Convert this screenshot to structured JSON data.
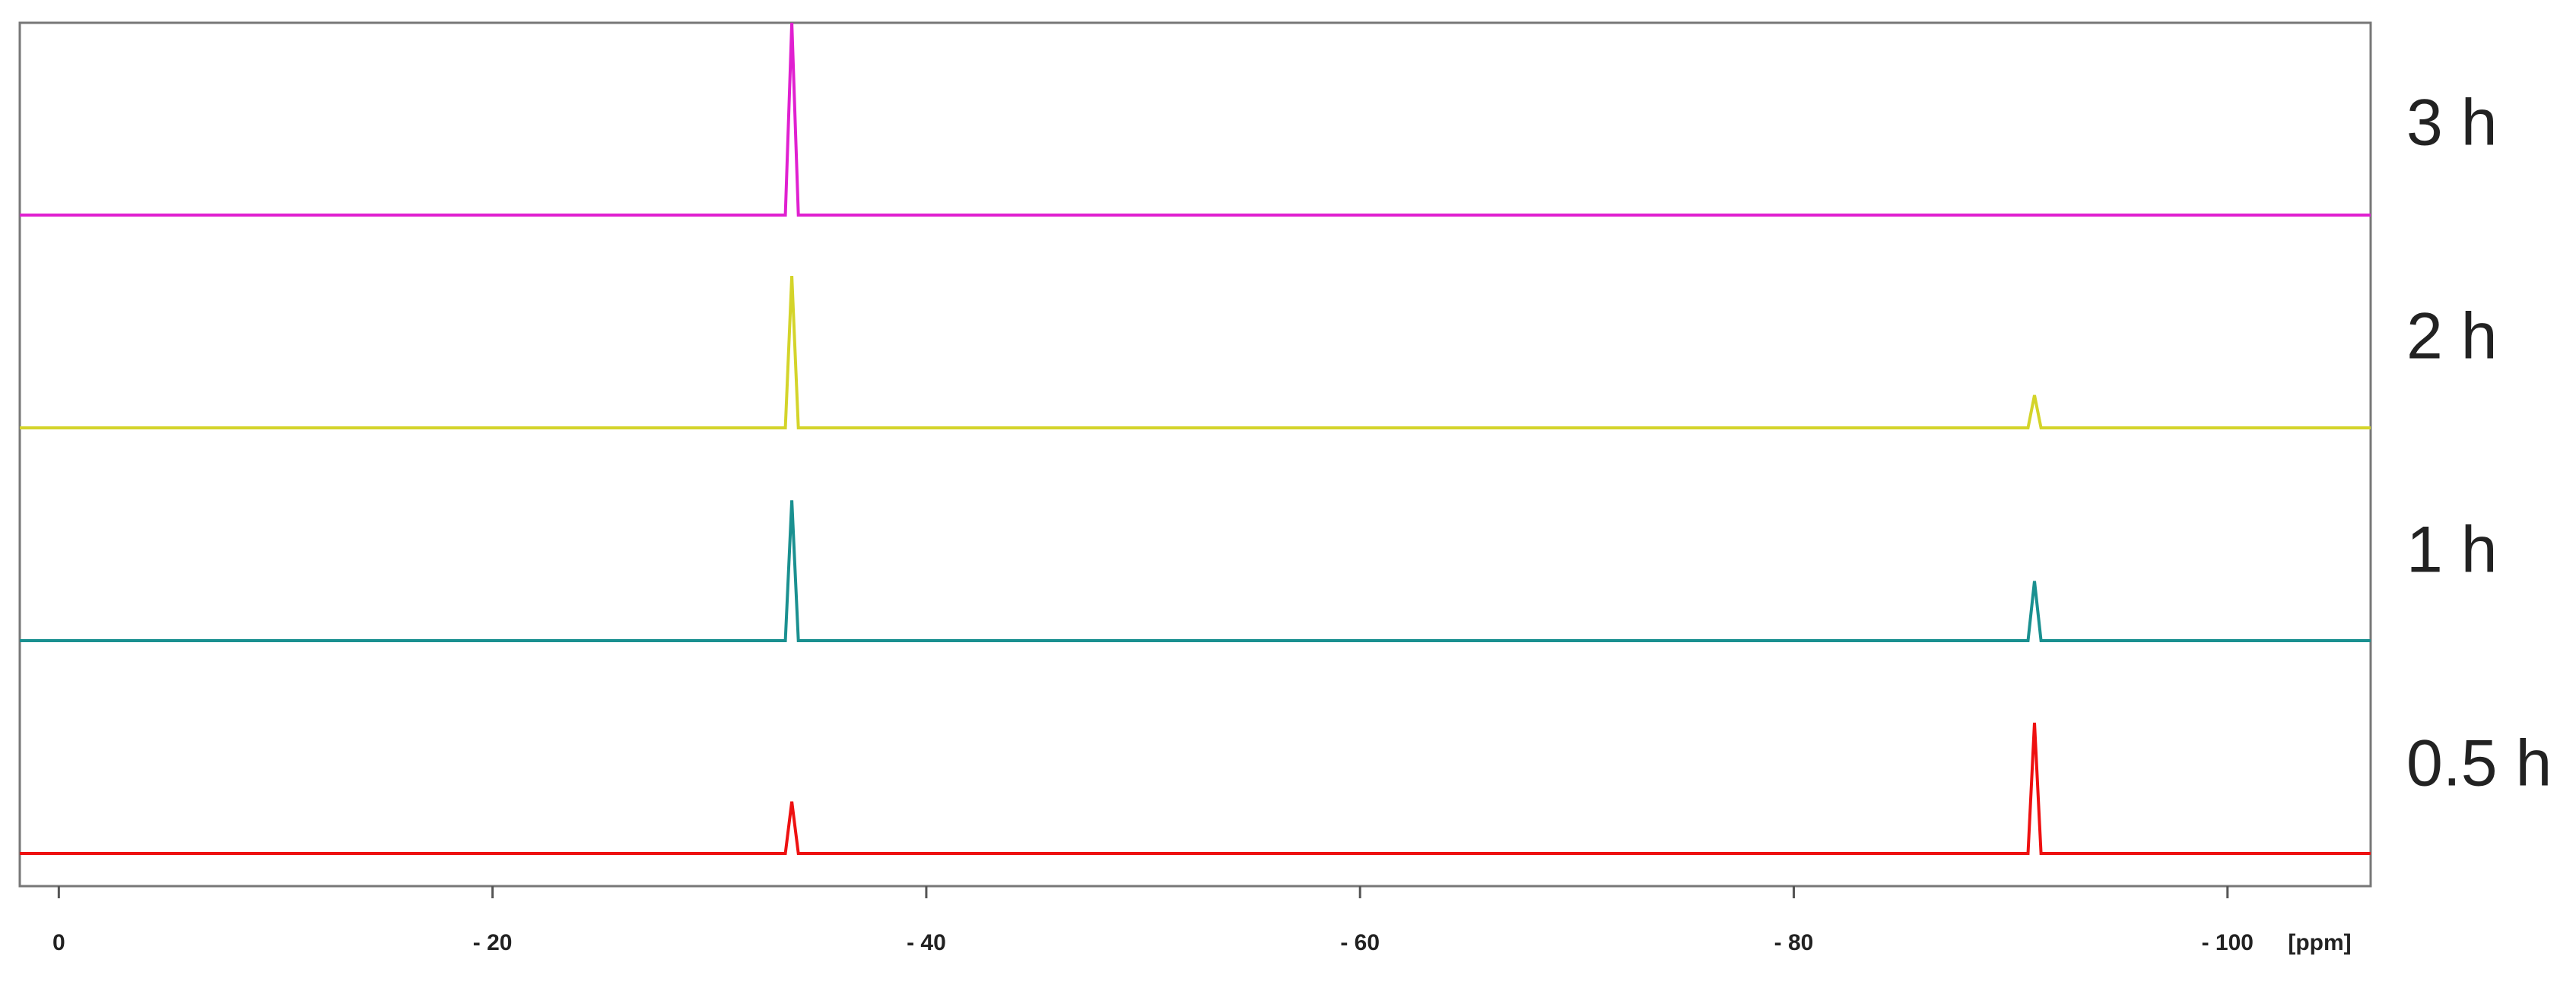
{
  "chart_data": {
    "type": "line",
    "x_label": "[ppm]",
    "xlim": [
      1.8,
      -106.6
    ],
    "xticks": [
      0,
      {
        "value": -20,
        "label": "- 20"
      },
      {
        "value": -40,
        "label": "- 40"
      },
      {
        "value": -60,
        "label": "- 60"
      },
      {
        "value": -80,
        "label": "- 80"
      },
      {
        "value": -100,
        "label": "- 100"
      }
    ],
    "x": [
      1.8,
      -33.5,
      -33.8,
      -34.1,
      -90.8,
      -91.1,
      -91.4,
      -106.6
    ],
    "series": [
      {
        "name": "3 h",
        "color": "#e020d0",
        "values": [
          0,
          0,
          100,
          0,
          0,
          0,
          0,
          0
        ]
      },
      {
        "name": "2 h",
        "color": "#d4d42a",
        "values": [
          0,
          0,
          79,
          0,
          0,
          17,
          0,
          0
        ]
      },
      {
        "name": "1 h",
        "color": "#1a9090",
        "values": [
          0,
          0,
          73,
          0,
          0,
          31,
          0,
          0
        ]
      },
      {
        "name": "0.5 h",
        "color": "#ee1111",
        "values": [
          0,
          0,
          27,
          0,
          0,
          68,
          0,
          0
        ]
      }
    ]
  }
}
